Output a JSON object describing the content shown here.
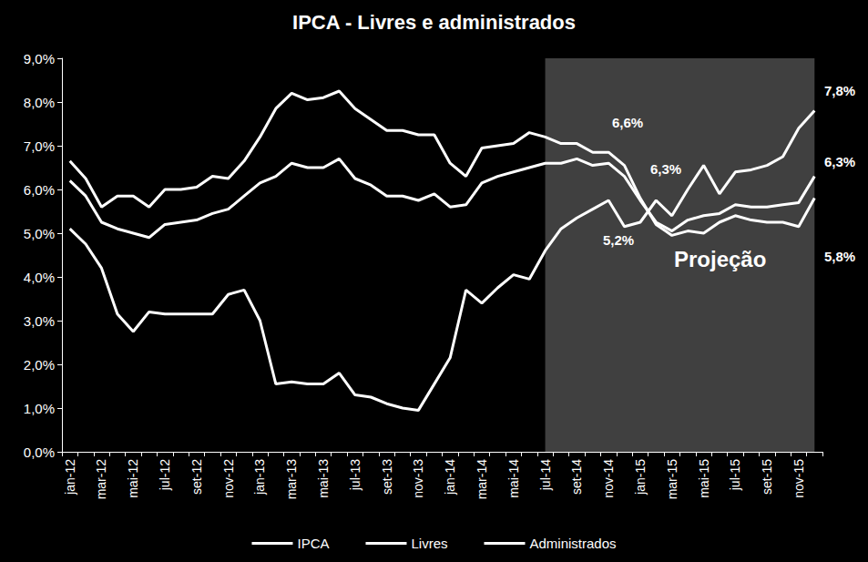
{
  "chart_data": {
    "type": "line",
    "title": "IPCA - Livres e administrados",
    "categories": [
      "jan-12",
      null,
      "mar-12",
      null,
      "mai-12",
      null,
      "jul-12",
      null,
      "set-12",
      null,
      "nov-12",
      null,
      "jan-13",
      null,
      "mar-13",
      null,
      "mai-13",
      null,
      "jul-13",
      null,
      "set-13",
      null,
      "nov-13",
      null,
      "jan-14",
      null,
      "mar-14",
      null,
      "mai-14",
      null,
      "jul-14",
      null,
      "set-14",
      null,
      "nov-14",
      null,
      "jan-15",
      null,
      "mar-15",
      null,
      "mai-15",
      null,
      "jul-15",
      null,
      "set-15",
      null,
      "nov-15",
      null
    ],
    "series": [
      {
        "name": "IPCA",
        "color": "#ffffff",
        "values": [
          6.2,
          5.85,
          5.25,
          5.1,
          5.0,
          4.9,
          5.2,
          5.25,
          5.3,
          5.45,
          5.55,
          5.85,
          6.15,
          6.3,
          6.6,
          6.5,
          6.5,
          6.7,
          6.25,
          6.1,
          5.85,
          5.85,
          5.75,
          5.9,
          5.6,
          5.65,
          6.15,
          6.3,
          6.4,
          6.5,
          6.6,
          6.6,
          6.7,
          6.55,
          6.6,
          6.3,
          5.75,
          5.25,
          5.05,
          5.3,
          5.4,
          5.45,
          5.65,
          5.6,
          5.6,
          5.65,
          5.7,
          6.3
        ]
      },
      {
        "name": "Livres",
        "color": "#ffffff",
        "values": [
          6.65,
          6.25,
          5.6,
          5.85,
          5.85,
          5.6,
          6.0,
          6.0,
          6.05,
          6.3,
          6.25,
          6.65,
          7.2,
          7.85,
          8.2,
          8.05,
          8.1,
          8.25,
          7.85,
          7.6,
          7.35,
          7.35,
          7.25,
          7.25,
          6.6,
          6.3,
          6.95,
          7.0,
          7.05,
          7.3,
          7.2,
          7.05,
          7.05,
          6.85,
          6.85,
          6.55,
          5.8,
          5.2,
          4.95,
          5.05,
          5.0,
          5.25,
          5.4,
          5.3,
          5.25,
          5.25,
          5.15,
          5.8
        ]
      },
      {
        "name": "Administrados",
        "color": "#ffffff",
        "values": [
          5.1,
          4.75,
          4.2,
          3.15,
          2.75,
          3.2,
          3.15,
          3.15,
          3.15,
          3.15,
          3.6,
          3.7,
          3.0,
          1.55,
          1.6,
          1.55,
          1.55,
          1.8,
          1.3,
          1.25,
          1.1,
          1.0,
          0.95,
          1.55,
          2.15,
          3.7,
          3.4,
          3.75,
          4.05,
          3.95,
          4.6,
          5.1,
          5.35,
          5.55,
          5.75,
          5.15,
          5.25,
          5.75,
          5.4,
          6.0,
          6.55,
          5.9,
          6.4,
          6.45,
          6.55,
          6.75,
          7.4,
          7.8
        ]
      }
    ],
    "ylim": [
      0,
      9
    ],
    "yticks": [
      {
        "value": 0,
        "label": "0,0%"
      },
      {
        "value": 1,
        "label": "1,0%"
      },
      {
        "value": 2,
        "label": "2,0%"
      },
      {
        "value": 3,
        "label": "3,0%"
      },
      {
        "value": 4,
        "label": "4,0%"
      },
      {
        "value": 5,
        "label": "5,0%"
      },
      {
        "value": 6,
        "label": "6,0%"
      },
      {
        "value": 7,
        "label": "7,0%"
      },
      {
        "value": 8,
        "label": "8,0%"
      },
      {
        "value": 9,
        "label": "9,0%"
      }
    ],
    "grid": false,
    "legend": "bottom",
    "projection": {
      "from": "jul-14",
      "label": "Projeção"
    },
    "annotations": [
      "6,6%",
      "6,3%",
      "5,2%",
      "7,8%",
      "6,3%",
      "5,8%"
    ]
  }
}
